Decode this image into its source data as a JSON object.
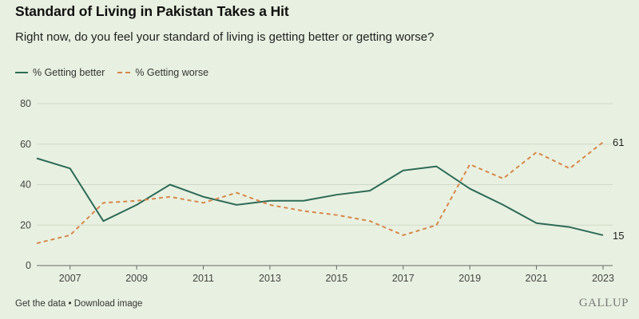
{
  "header": {
    "title": "Standard of Living in Pakistan Takes a Hit",
    "subtitle": "Right now, do you feel your standard of living is getting better or getting worse?"
  },
  "footer": {
    "get_data": "Get the data",
    "separator": " • ",
    "download": "Download image",
    "brand": "GALLUP"
  },
  "colors": {
    "background": "#e8f1e1",
    "better": "#2e6a58",
    "worse": "#d8874a",
    "grid": "#cfd8c8"
  },
  "chart_data": {
    "type": "line",
    "title": "Standard of Living in Pakistan Takes a Hit",
    "xlabel": "",
    "ylabel": "",
    "x": [
      2006,
      2007,
      2008,
      2009,
      2010,
      2011,
      2012,
      2013,
      2014,
      2015,
      2016,
      2017,
      2018,
      2019,
      2020,
      2021,
      2022,
      2023
    ],
    "xticks": [
      "2007",
      "2009",
      "2011",
      "2013",
      "2015",
      "2017",
      "2019",
      "2021",
      "2023"
    ],
    "yticks": [
      "0",
      "20",
      "40",
      "60",
      "80"
    ],
    "ylim": [
      0,
      80
    ],
    "grid": true,
    "legend_position": "top-left",
    "series": [
      {
        "name": "% Getting better",
        "style": "solid",
        "values": [
          53,
          48,
          22,
          30,
          40,
          34,
          30,
          32,
          32,
          35,
          37,
          47,
          49,
          38,
          30,
          21,
          19,
          15
        ],
        "end_label": "15"
      },
      {
        "name": "% Getting worse",
        "style": "dashed",
        "values": [
          11,
          15,
          31,
          32,
          34,
          31,
          36,
          30,
          27,
          25,
          22,
          15,
          20,
          50,
          43,
          56,
          48,
          61
        ],
        "end_label": "61"
      }
    ]
  }
}
